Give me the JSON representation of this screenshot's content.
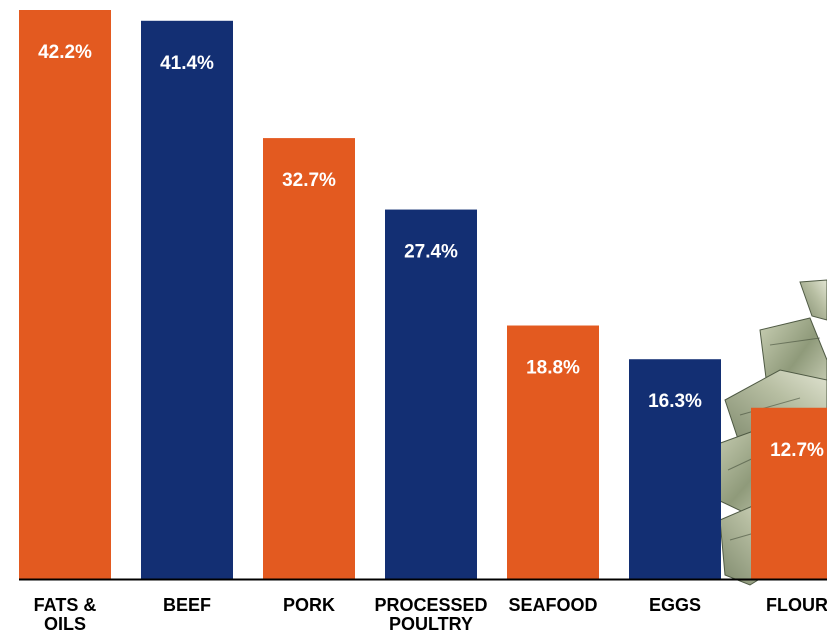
{
  "chart_data": {
    "type": "bar",
    "title": "",
    "xlabel": "",
    "ylabel": "",
    "categories": [
      [
        "FATS &",
        "OILS"
      ],
      [
        "BEEF"
      ],
      [
        "PORK"
      ],
      [
        "PROCESSED",
        "POULTRY"
      ],
      [
        "SEAFOOD"
      ],
      [
        "EGGS"
      ],
      [
        "FLOUR"
      ]
    ],
    "values": [
      42.2,
      41.4,
      32.7,
      27.4,
      18.8,
      16.3,
      12.7
    ],
    "value_labels": [
      "42.2%",
      "41.4%",
      "32.7%",
      "27.4%",
      "18.8%",
      "16.3%",
      "12.7%"
    ],
    "ylim": [
      0,
      42.2
    ],
    "grid": false,
    "legend": "none",
    "colors": [
      "#e35a20",
      "#132f73",
      "#e35a20",
      "#132f73",
      "#e35a20",
      "#132f73",
      "#e35a20"
    ],
    "decoration": "money-stack-image"
  }
}
